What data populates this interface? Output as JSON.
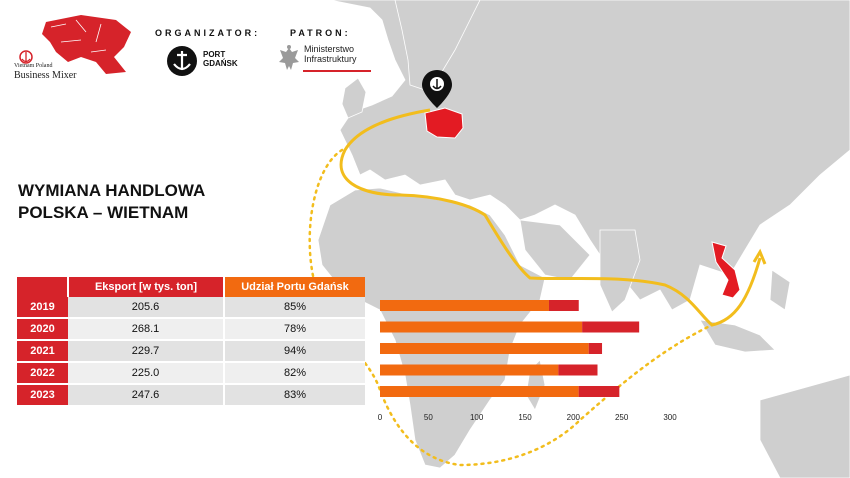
{
  "header": {
    "mixer_line1": "Vietnam Poland",
    "mixer_line2": "Business Mixer",
    "organizer_label": "ORGANIZATOR:",
    "port_name_1": "PORT",
    "port_name_2": "GDAŃSK",
    "patron_label": "PATRON:",
    "ministry_line1": "Ministerstwo",
    "ministry_line2": "Infrastruktury"
  },
  "title": {
    "line1": "WYMIANA HANDLOWA",
    "line2": "POLSKA – WIETNAM"
  },
  "table": {
    "col_export": "Eksport [w tys. ton]",
    "col_share": "Udział Portu Gdańsk",
    "rows": [
      {
        "year": "2019",
        "export": "205.6",
        "share": "85%"
      },
      {
        "year": "2020",
        "export": "268.1",
        "share": "78%"
      },
      {
        "year": "2021",
        "export": "229.7",
        "share": "94%"
      },
      {
        "year": "2022",
        "export": "225.0",
        "share": "82%"
      },
      {
        "year": "2023",
        "export": "247.6",
        "share": "83%"
      }
    ]
  },
  "colors": {
    "red": "#d6232a",
    "orange": "#f26a10",
    "land": "#cfcfcf",
    "route": "#f2bd1d"
  },
  "chart_data": {
    "type": "bar",
    "orientation": "horizontal",
    "stacked": true,
    "categories": [
      "2019",
      "2020",
      "2021",
      "2022",
      "2023"
    ],
    "series": [
      {
        "values": [
          174.8,
          209.1,
          215.9,
          184.5,
          205.5
        ],
        "color": "#f26a10"
      },
      {
        "values": [
          30.8,
          59.0,
          13.8,
          40.5,
          42.1
        ],
        "color": "#d6232a"
      }
    ],
    "totals": [
      205.6,
      268.1,
      229.7,
      225.0,
      247.6
    ],
    "xlim": [
      0,
      300
    ],
    "xticks": [
      "0",
      "50",
      "100",
      "150",
      "200",
      "250",
      "300"
    ],
    "grid": false
  }
}
